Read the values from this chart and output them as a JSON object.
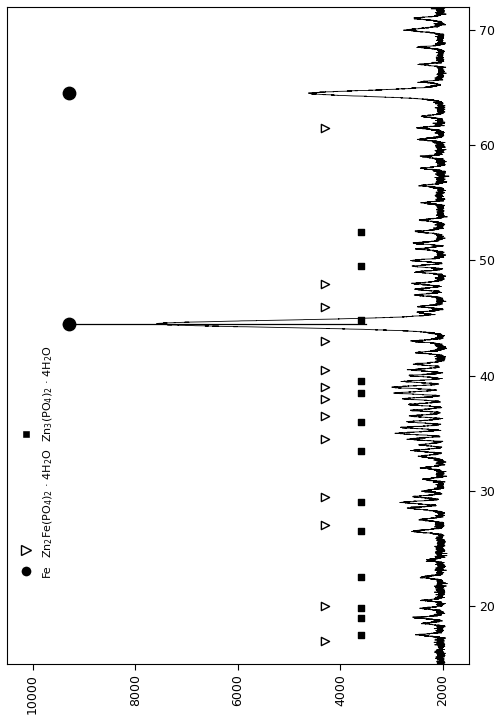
{
  "figsize": [
    5.02,
    7.21
  ],
  "dpi": 100,
  "xlim": [
    10500,
    1500
  ],
  "ylim": [
    15,
    72
  ],
  "xticks": [
    10000,
    8000,
    6000,
    4000,
    2000
  ],
  "yticks": [
    20,
    30,
    40,
    50,
    60,
    70
  ],
  "background_color": "#ffffff",
  "line_color": "#000000",
  "legend_labels": [
    "Zn$_3$(PO$_4$)$_2$ · 4H$_2$O",
    "Zn$_2$Fe(PO$_4$)$_2$ · 4H$_2$O",
    "Fe"
  ],
  "zn3_2theta": [
    17.5,
    19.0,
    19.8,
    22.5,
    26.5,
    29.0,
    33.5,
    36.0,
    38.5,
    39.5,
    44.8,
    49.5,
    52.5
  ],
  "znfe_2theta": [
    17.0,
    20.0,
    27.0,
    29.5,
    34.5,
    36.5,
    38.0,
    39.0,
    40.5,
    43.0,
    46.0,
    48.0,
    61.5
  ],
  "fe_2theta": [
    44.5,
    64.5
  ],
  "zn3_intensity": 3600,
  "znfe_intensity": 4300,
  "fe_intensity": 9300,
  "flat_line_2theta": 44.5,
  "flat_line_x_start": 9400,
  "flat_line_x_end": 3500,
  "seed": 77
}
